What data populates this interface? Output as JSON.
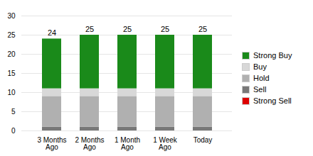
{
  "chart_data": {
    "type": "bar",
    "stacked": true,
    "categories": [
      "3 Months\nAgo",
      "2 Months\nAgo",
      "1 Month\nAgo",
      "1 Week\nAgo",
      "Today"
    ],
    "series": [
      {
        "name": "Strong Sell",
        "color": "#dd0000",
        "values": [
          0,
          0,
          0,
          0,
          0
        ]
      },
      {
        "name": "Sell",
        "color": "#787878",
        "values": [
          1,
          1,
          1,
          1,
          1
        ]
      },
      {
        "name": "Hold",
        "color": "#b0b0b0",
        "values": [
          8,
          8,
          8,
          8,
          8
        ]
      },
      {
        "name": "Buy",
        "color": "#d8d8d8",
        "values": [
          2,
          2,
          2,
          2,
          2
        ]
      },
      {
        "name": "Strong Buy",
        "color": "#1a8a1a",
        "values": [
          13,
          14,
          14,
          14,
          14
        ]
      }
    ],
    "totals": [
      24,
      25,
      25,
      25,
      25
    ],
    "ylim": [
      0,
      30
    ],
    "yticks": [
      0,
      5,
      10,
      15,
      20,
      25,
      30
    ],
    "grid": true,
    "legend": "right"
  }
}
